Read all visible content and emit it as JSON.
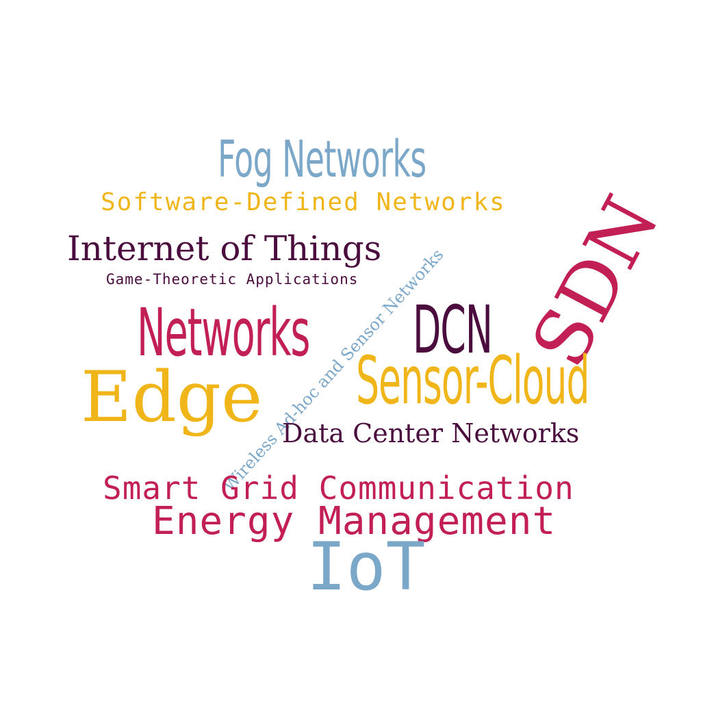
{
  "colors": {
    "light_blue": "#7ba7c9",
    "yellow": "#f0b619",
    "dark_purple": "#4a0d3e",
    "crimson": "#c21f55",
    "background": "#ffffff"
  },
  "words": {
    "fog_networks": "Fog Networks",
    "software_defined_networks": "Software-Defined Networks",
    "internet_of_things": "Internet of Things",
    "game_theoretic_applications": "Game-Theoretic Applications",
    "networks": "Networks",
    "dcn": "DCN",
    "sdn": "SDN",
    "sensor_cloud": "Sensor-Cloud",
    "edge": "Edge",
    "wireless_adhoc_sensor_networks": "Wireless Ad-hoc and Sensor Networks",
    "data_center_networks": "Data Center Networks",
    "smart_grid_communication": "Smart Grid Communication",
    "energy_management": "Energy Management",
    "iot": "IoT"
  }
}
